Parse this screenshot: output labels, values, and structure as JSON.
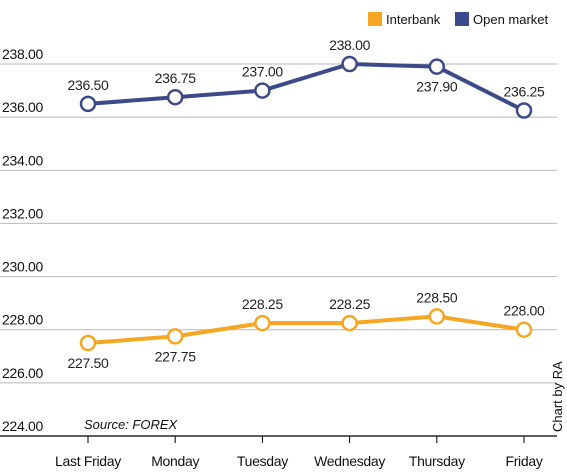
{
  "chart_data": {
    "type": "line",
    "categories": [
      "Last Friday",
      "Monday",
      "Tuesday",
      "Wednesday",
      "Thursday",
      "Friday"
    ],
    "series": [
      {
        "name": "Interbank",
        "color": "#F5A623",
        "values": [
          227.5,
          227.75,
          228.25,
          228.25,
          228.5,
          228.0
        ],
        "labels": [
          "227.50",
          "227.75",
          "228.25",
          "228.25",
          "228.50",
          "228.00"
        ],
        "label_position": [
          "below",
          "below",
          "above",
          "above",
          "above",
          "above"
        ]
      },
      {
        "name": "Open market",
        "color": "#3D4A8A",
        "values": [
          236.5,
          236.75,
          237.0,
          238.0,
          237.9,
          236.25
        ],
        "labels": [
          "236.50",
          "236.75",
          "237.00",
          "238.00",
          "237.90",
          "236.25"
        ],
        "label_position": [
          "above",
          "above",
          "above",
          "above",
          "below",
          "above"
        ]
      }
    ],
    "ylim": [
      224,
      238
    ],
    "yticks": [
      "224.00",
      "226.00",
      "228.00",
      "230.00",
      "232.00",
      "234.00",
      "236.00",
      "238.00"
    ],
    "grid": true,
    "legend": "top-right",
    "source": "Source: FOREX",
    "credit": "Chart by RA"
  }
}
